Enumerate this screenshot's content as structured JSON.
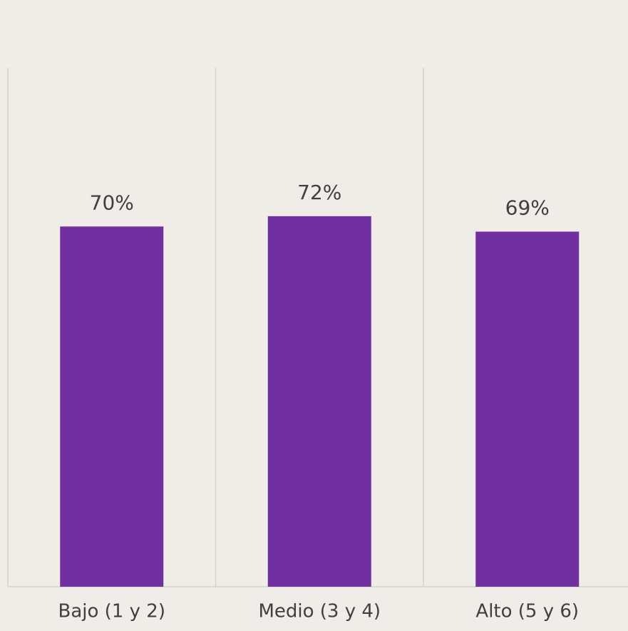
{
  "chart_data": {
    "type": "bar",
    "categories": [
      "Bajo (1 y 2)",
      "Medio (3 y 4)",
      "Alto (5 y 6)"
    ],
    "values": [
      70,
      72,
      69
    ],
    "value_labels": [
      "70%",
      "72%",
      "69%"
    ],
    "color": "#7030a0"
  }
}
